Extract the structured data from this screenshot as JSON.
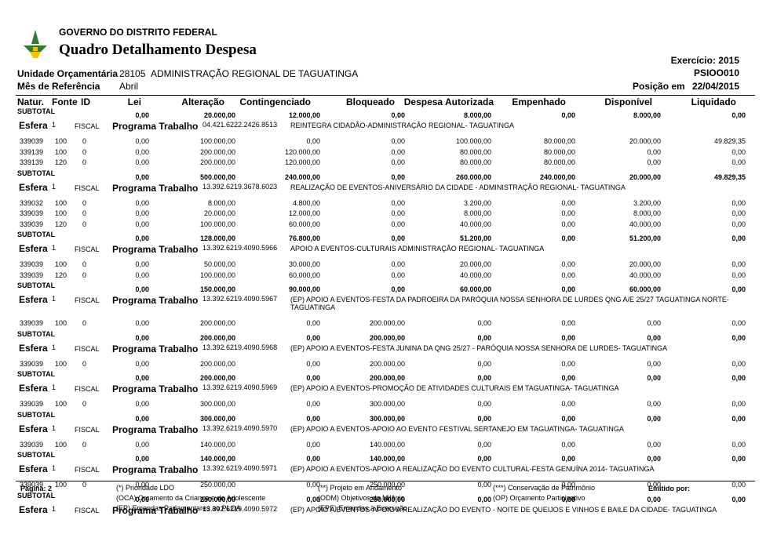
{
  "header": {
    "org": "GOVERNO DO DISTRITO FEDERAL",
    "title": "Quadro Detalhamento Despesa",
    "exercicio": "Exercício: 2015",
    "code": "PSIOO010",
    "unidade_label": "Unidade Orçamentária",
    "unidade_code": "28105",
    "unidade_name": "ADMINISTRAÇÃO REGIONAL DE TAGUATINGA",
    "mes_label": "Mês de Referência",
    "mes": "Abril",
    "posicao_label": "Posição em",
    "posicao": "22/04/2015"
  },
  "table": {
    "columns": [
      "Natur.",
      "Fonte",
      "ID",
      "Lei",
      "Alteração",
      "Contingenciado",
      "Bloqueado",
      "Despesa Autorizada",
      "Empenhado",
      "Disponível",
      "Liquidado"
    ],
    "rows": [
      {
        "subtotal": {
          "label": "SUBTOTAL",
          "values": [
            "0,00",
            "20.000,00",
            "12.000,00",
            "0,00",
            "8.000,00",
            "0,00",
            "8.000,00",
            "0,00"
          ]
        }
      },
      {
        "esfera": {
          "label": "Esfera",
          "number": "1",
          "fiscal": "FISCAL",
          "programa_label": "Programa Trabalho",
          "code": "04.421.6222.2426.8513",
          "description": "REINTEGRA CIDADÃO-ADMINISTRAÇÃO REGIONAL- TAGUATINGA"
        }
      },
      {
        "item": [
          "339039",
          "100",
          "0",
          "0,00",
          "100.000,00",
          "0,00",
          "0,00",
          "100.000,00",
          "80.000,00",
          "20.000,00",
          "49.829,35"
        ]
      },
      {
        "item": [
          "339139",
          "100",
          "0",
          "0,00",
          "200.000,00",
          "120.000,00",
          "0,00",
          "80.000,00",
          "80.000,00",
          "0,00",
          "0,00"
        ]
      },
      {
        "item": [
          "339139",
          "120",
          "0",
          "0,00",
          "200.000,00",
          "120.000,00",
          "0,00",
          "80.000,00",
          "80.000,00",
          "0,00",
          "0,00"
        ]
      },
      {
        "subtotal": {
          "label": "SUBTOTAL",
          "values": [
            "0,00",
            "500.000,00",
            "240.000,00",
            "0,00",
            "260.000,00",
            "240.000,00",
            "20.000,00",
            "49.829,35"
          ]
        }
      },
      {
        "esfera": {
          "label": "Esfera",
          "number": "1",
          "fiscal": "FISCAL",
          "programa_label": "Programa Trabalho",
          "code": "13.392.6219.3678.6023",
          "description": "REALIZAÇÃO DE EVENTOS-ANIVERSÁRIO DA CIDADE - ADMINISTRAÇÃO REGIONAL- TAGUATINGA"
        }
      },
      {
        "item": [
          "339032",
          "100",
          "0",
          "0,00",
          "8.000,00",
          "4.800,00",
          "0,00",
          "3.200,00",
          "0,00",
          "3.200,00",
          "0,00"
        ]
      },
      {
        "item": [
          "339039",
          "100",
          "0",
          "0,00",
          "20.000,00",
          "12.000,00",
          "0,00",
          "8.000,00",
          "0,00",
          "8.000,00",
          "0,00"
        ]
      },
      {
        "item": [
          "339039",
          "120",
          "0",
          "0,00",
          "100.000,00",
          "60.000,00",
          "0,00",
          "40.000,00",
          "0,00",
          "40.000,00",
          "0,00"
        ]
      },
      {
        "subtotal": {
          "label": "SUBTOTAL",
          "values": [
            "0,00",
            "128.000,00",
            "76.800,00",
            "0,00",
            "51.200,00",
            "0,00",
            "51.200,00",
            "0,00"
          ]
        }
      },
      {
        "esfera": {
          "label": "Esfera",
          "number": "1",
          "fiscal": "FISCAL",
          "programa_label": "Programa Trabalho",
          "code": "13.392.6219.4090.5966",
          "description": "APOIO A EVENTOS-CULTURAIS  ADMINISTRAÇÃO REGIONAL- TAGUATINGA"
        }
      },
      {
        "item": [
          "339039",
          "100",
          "0",
          "0,00",
          "50.000,00",
          "30.000,00",
          "0,00",
          "20.000,00",
          "0,00",
          "20.000,00",
          "0,00"
        ]
      },
      {
        "item": [
          "339039",
          "120",
          "0",
          "0,00",
          "100.000,00",
          "60.000,00",
          "0,00",
          "40.000,00",
          "0,00",
          "40.000,00",
          "0,00"
        ]
      },
      {
        "subtotal": {
          "label": "SUBTOTAL",
          "values": [
            "0,00",
            "150.000,00",
            "90.000,00",
            "0,00",
            "60.000,00",
            "0,00",
            "60.000,00",
            "0,00"
          ]
        }
      },
      {
        "esfera": {
          "label": "Esfera",
          "number": "1",
          "fiscal": "FISCAL",
          "programa_label": "Programa Trabalho",
          "code": "13.392.6219.4090.5967",
          "description": "(EP) APOIO A EVENTOS-FESTA DA PADROEIRA DA PARÓQUIA NOSSA SENHORA DE LURDES  QNG A/E 25/27 TAGUATINGA NORTE-TAGUATINGA"
        }
      },
      {
        "item": [
          "339039",
          "100",
          "0",
          "0,00",
          "200.000,00",
          "0,00",
          "200.000,00",
          "0,00",
          "0,00",
          "0,00",
          "0,00"
        ]
      },
      {
        "subtotal": {
          "label": "SUBTOTAL",
          "values": [
            "0,00",
            "200.000,00",
            "0,00",
            "200.000,00",
            "0,00",
            "0,00",
            "0,00",
            "0,00"
          ]
        }
      },
      {
        "esfera": {
          "label": "Esfera",
          "number": "1",
          "fiscal": "FISCAL",
          "programa_label": "Programa Trabalho",
          "code": "13.392.6219.4090.5968",
          "description": "(EP) APOIO A EVENTOS-FESTA JUNINA DA QNG 25/27 -  PARÓQUIA NOSSA SENHORA  DE LURDES- TAGUATINGA"
        }
      },
      {
        "item": [
          "339039",
          "100",
          "0",
          "0,00",
          "200.000,00",
          "0,00",
          "200.000,00",
          "0,00",
          "0,00",
          "0,00",
          "0,00"
        ]
      },
      {
        "subtotal": {
          "label": "SUBTOTAL",
          "values": [
            "0,00",
            "200.000,00",
            "0,00",
            "200.000,00",
            "0,00",
            "0,00",
            "0,00",
            "0,00"
          ]
        }
      },
      {
        "esfera": {
          "label": "Esfera",
          "number": "1",
          "fiscal": "FISCAL",
          "programa_label": "Programa Trabalho",
          "code": "13.392.6219.4090.5969",
          "description": "(EP) APOIO A EVENTOS-PROMOÇÃO DE ATIVIDADES CULTURAIS EM  TAGUATINGA- TAGUATINGA"
        }
      },
      {
        "item": [
          "339039",
          "100",
          "0",
          "0,00",
          "300.000,00",
          "0,00",
          "300.000,00",
          "0,00",
          "0,00",
          "0,00",
          "0,00"
        ]
      },
      {
        "subtotal": {
          "label": "SUBTOTAL",
          "values": [
            "0,00",
            "300.000,00",
            "0,00",
            "300.000,00",
            "0,00",
            "0,00",
            "0,00",
            "0,00"
          ]
        }
      },
      {
        "esfera": {
          "label": "Esfera",
          "number": "1",
          "fiscal": "FISCAL",
          "programa_label": "Programa Trabalho",
          "code": "13.392.6219.4090.5970",
          "description": "(EP) APOIO A EVENTOS-APOIO AO EVENTO FESTIVAL SERTANEJO EM TAGUATINGA- TAGUATINGA"
        }
      },
      {
        "item": [
          "339039",
          "100",
          "0",
          "0,00",
          "140.000,00",
          "0,00",
          "140.000,00",
          "0,00",
          "0,00",
          "0,00",
          "0,00"
        ]
      },
      {
        "subtotal": {
          "label": "SUBTOTAL",
          "values": [
            "0,00",
            "140.000,00",
            "0,00",
            "140.000,00",
            "0,00",
            "0,00",
            "0,00",
            "0,00"
          ]
        }
      },
      {
        "esfera": {
          "label": "Esfera",
          "number": "1",
          "fiscal": "FISCAL",
          "programa_label": "Programa Trabalho",
          "code": "13.392.6219.4090.5971",
          "description": "(EP) APOIO A EVENTOS-APOIO A REALIZAÇÃO DO EVENTO CULTURAL-FESTA GENUÍNA 2014- TAGUATINGA"
        }
      },
      {
        "item": [
          "339039",
          "100",
          "0",
          "0,00",
          "250.000,00",
          "0,00",
          "250.000,00",
          "0,00",
          "0,00",
          "0,00",
          "0,00"
        ]
      },
      {
        "subtotal": {
          "label": "SUBTOTAL",
          "values": [
            "0,00",
            "250.000,00",
            "0,00",
            "250.000,00",
            "0,00",
            "0,00",
            "0,00",
            "0,00"
          ]
        }
      },
      {
        "esfera": {
          "label": "Esfera",
          "number": "1",
          "fiscal": "FISCAL",
          "programa_label": "Programa Trabalho",
          "code": "13.392.6219.4090.5972",
          "description": "(EP) APOIO A EVENTOS-APOIO A REALIZAÇÃO DO EVENTO - NOITE DE QUEIJOS E VINHOS E BAILE DA CIDADE- TAGUATINGA"
        }
      }
    ]
  },
  "footer": {
    "page": "Página: 2",
    "emitido": "Emitido por:",
    "notes": [
      "(*) Prioridade LDO",
      "(**) Projeto em Andamento",
      "(***) Conservação de Patrimônio",
      "(OCA) Orçamento da Criança e do Adolescente",
      "(ODM) Objetivos do Milênio",
      "(OP) Orçamento Participativo",
      "(EP) Emendas Parlamentares ao PLOA",
      "(EPE) Emendas à Execução"
    ]
  }
}
